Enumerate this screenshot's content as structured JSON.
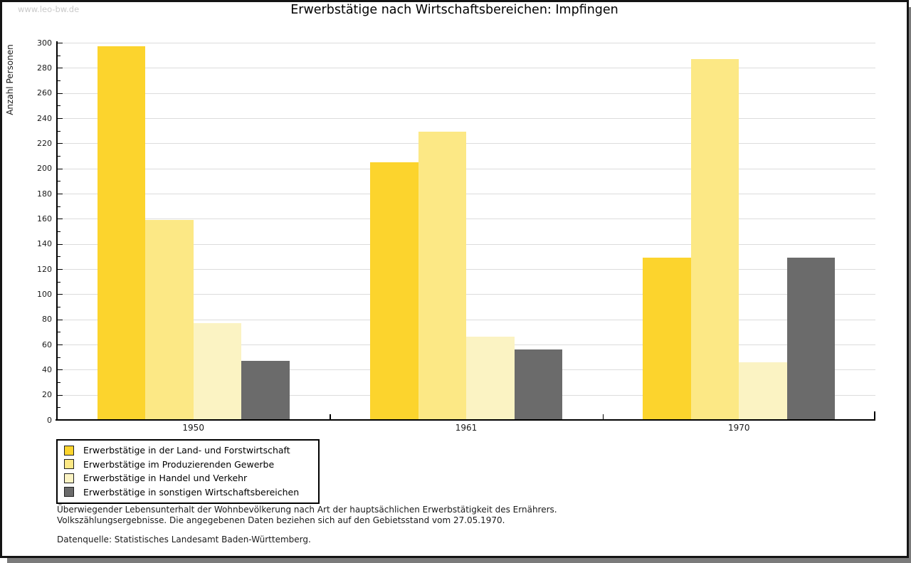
{
  "watermark": "www.leo-bw.de",
  "header": {
    "title": "Erwerbstätige nach Wirtschaftsbereichen: Impfingen"
  },
  "chart_data": {
    "type": "bar",
    "title": "Erwerbstätige nach Wirtschaftsbereichen: Impfingen",
    "xlabel": "",
    "ylabel": "Anzahl Personen",
    "categories": [
      "1950",
      "1961",
      "1970"
    ],
    "series": [
      {
        "name": "Erwerbstätige in der Land- und Forstwirtschaft",
        "color": "#fcd42d",
        "values": [
          297,
          205,
          129
        ]
      },
      {
        "name": "Erwerbstätige im Produzierenden Gewerbe",
        "color": "#fce885",
        "values": [
          159,
          229,
          287
        ]
      },
      {
        "name": "Erwerbstätige in Handel und Verkehr",
        "color": "#fbf3c3",
        "values": [
          77,
          66,
          46
        ]
      },
      {
        "name": "Erwerbstätige in sonstigen Wirtschaftsbereichen",
        "color": "#6b6b6b",
        "values": [
          47,
          56,
          129
        ]
      }
    ],
    "ylim": [
      0,
      300
    ],
    "ytick_step": 20,
    "minor_tick_step": 10,
    "grid": "horizontal-major",
    "gridline_color": "#dcdcdc",
    "legend_position": "bottom-left"
  },
  "footnotes": {
    "line1": "Überwiegender Lebensunterhalt der Wohnbevölkerung nach Art der hauptsächlichen Erwerbstätigkeit des Ernährers.",
    "line2": "Volkszählungsergebnisse. Die angegebenen Daten beziehen sich auf den Gebietsstand vom 27.05.1970.",
    "datasource": "Datenquelle: Statistisches Landesamt Baden-Württemberg."
  }
}
